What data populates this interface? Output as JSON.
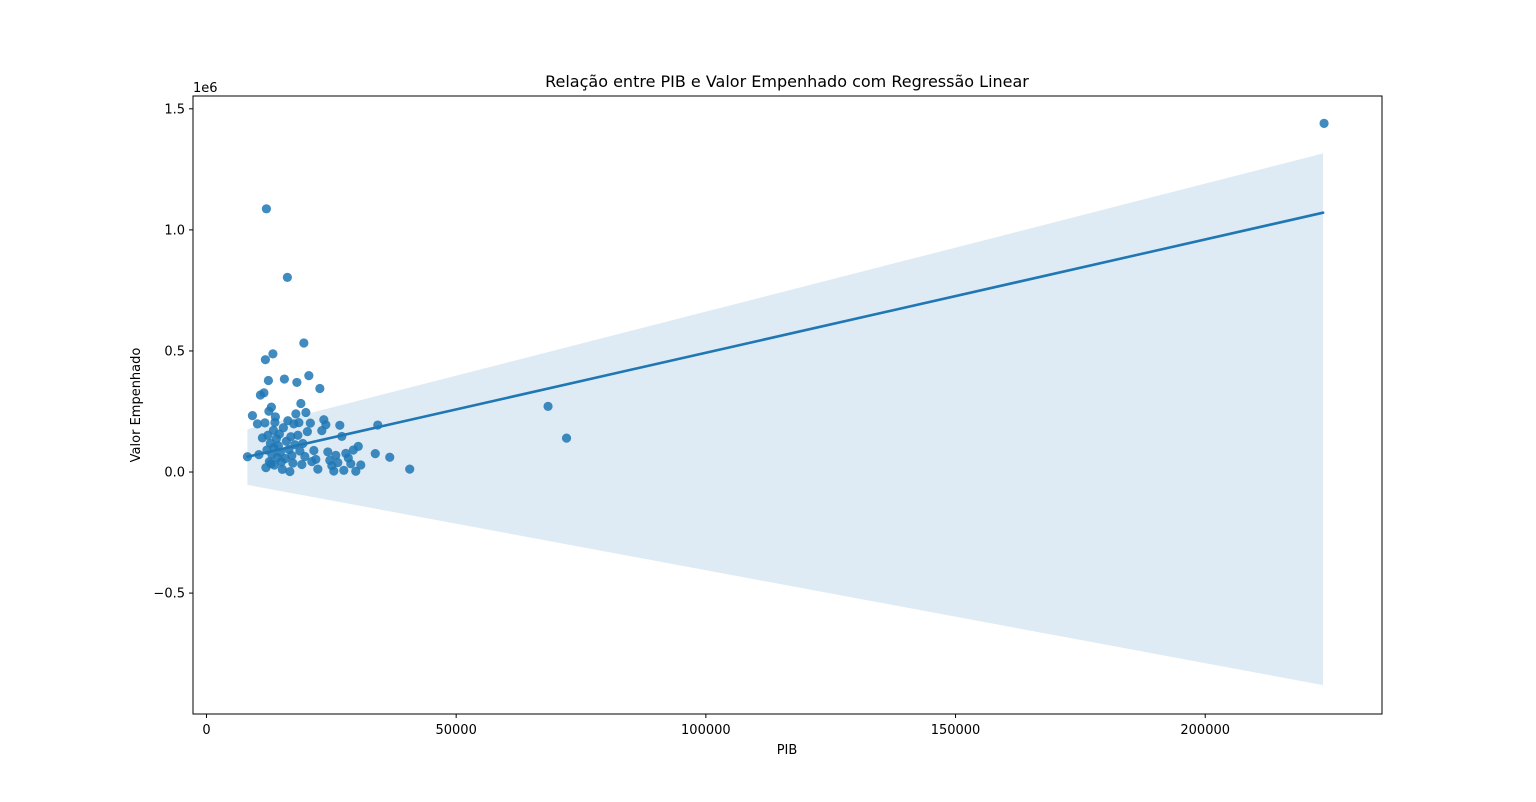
{
  "chart_data": {
    "type": "scatter",
    "title": "Relação entre PIB e Valor Empenhado com Regressão Linear",
    "xlabel": "PIB",
    "ylabel": "Valor Empenhado",
    "y_offset_label": "1e6",
    "xlim": [
      -2700,
      235400
    ],
    "ylim": [
      -0.9993,
      1.5529
    ],
    "x_ticks": [
      0,
      50000,
      100000,
      150000,
      200000
    ],
    "x_tick_labels": [
      "0",
      "50000",
      "100000",
      "150000",
      "200000"
    ],
    "y_ticks": [
      -0.5,
      0.0,
      0.5,
      1.0,
      1.5
    ],
    "y_tick_labels": [
      "−0.5",
      "0.0",
      "0.5",
      "1.0",
      "1.5"
    ],
    "grid": false,
    "legend": "none",
    "colors": {
      "points": "#1f77b4",
      "line": "#1f77b4",
      "band": "#1f77b4"
    },
    "regression": {
      "x_start": 8200,
      "y_start": 0.063,
      "x_end": 223600,
      "y_end": 1.071,
      "ci_upper": [
        [
          8200,
          0.177
        ],
        [
          223600,
          1.316
        ]
      ],
      "ci_lower": [
        [
          8200,
          -0.053
        ],
        [
          223600,
          -0.88
        ]
      ]
    },
    "points": [
      [
        8200,
        0.063
      ],
      [
        9200,
        0.233
      ],
      [
        10200,
        0.199
      ],
      [
        10500,
        0.072
      ],
      [
        10800,
        0.318
      ],
      [
        11200,
        0.141
      ],
      [
        11500,
        0.327
      ],
      [
        11700,
        0.203
      ],
      [
        11800,
        0.464
      ],
      [
        11900,
        0.018
      ],
      [
        12000,
        1.087
      ],
      [
        12100,
        0.091
      ],
      [
        12300,
        0.152
      ],
      [
        12400,
        0.378
      ],
      [
        12500,
        0.251
      ],
      [
        12600,
        0.043
      ],
      [
        12800,
        0.119
      ],
      [
        12900,
        0.034
      ],
      [
        13000,
        0.268
      ],
      [
        13100,
        0.073
      ],
      [
        13300,
        0.488
      ],
      [
        13400,
        0.172
      ],
      [
        13500,
        0.101
      ],
      [
        13600,
        0.029
      ],
      [
        13700,
        0.205
      ],
      [
        13800,
        0.228
      ],
      [
        14000,
        0.138
      ],
      [
        14200,
        0.06
      ],
      [
        14400,
        0.108
      ],
      [
        14600,
        0.157
      ],
      [
        14800,
        0.081
      ],
      [
        15000,
        0.042
      ],
      [
        15200,
        0.011
      ],
      [
        15400,
        0.183
      ],
      [
        15600,
        0.384
      ],
      [
        15800,
        0.056
      ],
      [
        16000,
        0.127
      ],
      [
        16200,
        0.804
      ],
      [
        16300,
        0.212
      ],
      [
        16500,
        0.093
      ],
      [
        16700,
        0.002
      ],
      [
        16900,
        0.146
      ],
      [
        17100,
        0.068
      ],
      [
        17300,
        0.037
      ],
      [
        17500,
        0.199
      ],
      [
        17700,
        0.113
      ],
      [
        17900,
        0.24
      ],
      [
        18100,
        0.37
      ],
      [
        18300,
        0.152
      ],
      [
        18500,
        0.204
      ],
      [
        18700,
        0.087
      ],
      [
        18900,
        0.283
      ],
      [
        19100,
        0.031
      ],
      [
        19300,
        0.118
      ],
      [
        19500,
        0.533
      ],
      [
        19700,
        0.064
      ],
      [
        19900,
        0.246
      ],
      [
        20200,
        0.167
      ],
      [
        20500,
        0.398
      ],
      [
        20800,
        0.202
      ],
      [
        21100,
        0.043
      ],
      [
        21500,
        0.089
      ],
      [
        21900,
        0.052
      ],
      [
        22300,
        0.012
      ],
      [
        22700,
        0.345
      ],
      [
        23100,
        0.171
      ],
      [
        23500,
        0.216
      ],
      [
        23900,
        0.195
      ],
      [
        24300,
        0.083
      ],
      [
        24700,
        0.048
      ],
      [
        25100,
        0.026
      ],
      [
        25500,
        0.004
      ],
      [
        25900,
        0.069
      ],
      [
        26300,
        0.039
      ],
      [
        26700,
        0.193
      ],
      [
        27100,
        0.147
      ],
      [
        27500,
        0.007
      ],
      [
        27900,
        0.077
      ],
      [
        28400,
        0.058
      ],
      [
        28900,
        0.034
      ],
      [
        29400,
        0.091
      ],
      [
        29900,
        0.003
      ],
      [
        30400,
        0.106
      ],
      [
        30900,
        0.029
      ],
      [
        33800,
        0.076
      ],
      [
        34300,
        0.194
      ],
      [
        36700,
        0.061
      ],
      [
        40700,
        0.012
      ],
      [
        68400,
        0.271
      ],
      [
        72100,
        0.14
      ],
      [
        223800,
        1.44
      ]
    ]
  }
}
